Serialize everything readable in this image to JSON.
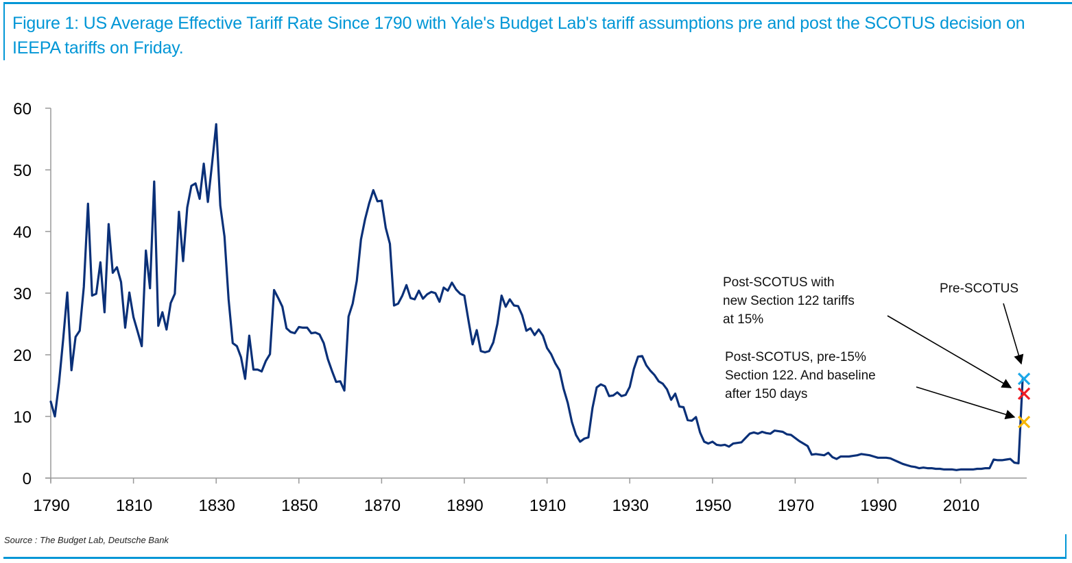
{
  "title": "Figure 1: US Average Effective Tariff Rate Since 1790 with Yale's Budget Lab's tariff assumptions pre and post the SCOTUS decision on IEEPA tariffs on Friday.",
  "source": "Source : The Budget Lab, Deutsche Bank",
  "colors": {
    "frame": "#0096d6",
    "title": "#0096d6",
    "line": "#0a3078",
    "axis": "#999999"
  },
  "chart_data": {
    "type": "line",
    "title": "US Average Effective Tariff Rate Since 1790",
    "xlabel": "",
    "ylabel": "",
    "xlim": [
      1790,
      2027
    ],
    "ylim": [
      0,
      60
    ],
    "grid": false,
    "x_ticks": [
      1790,
      1810,
      1830,
      1850,
      1870,
      1890,
      1910,
      1930,
      1950,
      1970,
      1990,
      2010
    ],
    "y_ticks": [
      0,
      10,
      20,
      30,
      40,
      50,
      60
    ],
    "series": [
      {
        "name": "Average effective tariff rate (%)",
        "color": "#0a3078",
        "x": [
          1790,
          1791,
          1792,
          1793,
          1794,
          1795,
          1796,
          1797,
          1798,
          1799,
          1800,
          1801,
          1802,
          1803,
          1804,
          1805,
          1806,
          1807,
          1808,
          1809,
          1810,
          1811,
          1812,
          1813,
          1814,
          1815,
          1816,
          1817,
          1818,
          1819,
          1820,
          1821,
          1822,
          1823,
          1824,
          1825,
          1826,
          1827,
          1828,
          1829,
          1830,
          1831,
          1832,
          1833,
          1834,
          1835,
          1836,
          1837,
          1838,
          1839,
          1840,
          1841,
          1842,
          1843,
          1844,
          1845,
          1846,
          1847,
          1848,
          1849,
          1850,
          1851,
          1852,
          1853,
          1854,
          1855,
          1856,
          1857,
          1858,
          1859,
          1860,
          1861,
          1862,
          1863,
          1864,
          1865,
          1866,
          1867,
          1868,
          1869,
          1870,
          1871,
          1872,
          1873,
          1874,
          1875,
          1876,
          1877,
          1878,
          1879,
          1880,
          1881,
          1882,
          1883,
          1884,
          1885,
          1886,
          1887,
          1888,
          1889,
          1890,
          1891,
          1892,
          1893,
          1894,
          1895,
          1896,
          1897,
          1898,
          1899,
          1900,
          1901,
          1902,
          1903,
          1904,
          1905,
          1906,
          1907,
          1908,
          1909,
          1910,
          1911,
          1912,
          1913,
          1914,
          1915,
          1916,
          1917,
          1918,
          1919,
          1920,
          1921,
          1922,
          1923,
          1924,
          1925,
          1926,
          1927,
          1928,
          1929,
          1930,
          1931,
          1932,
          1933,
          1934,
          1935,
          1936,
          1937,
          1938,
          1939,
          1940,
          1941,
          1942,
          1943,
          1944,
          1945,
          1946,
          1947,
          1948,
          1949,
          1950,
          1951,
          1952,
          1953,
          1954,
          1955,
          1956,
          1957,
          1958,
          1959,
          1960,
          1961,
          1962,
          1963,
          1964,
          1965,
          1966,
          1967,
          1968,
          1969,
          1970,
          1971,
          1972,
          1973,
          1974,
          1975,
          1976,
          1977,
          1978,
          1979,
          1980,
          1981,
          1982,
          1983,
          1984,
          1985,
          1986,
          1987,
          1988,
          1989,
          1990,
          1991,
          1992,
          1993,
          1994,
          1995,
          1996,
          1997,
          1998,
          1999,
          2000,
          2001,
          2002,
          2003,
          2004,
          2005,
          2006,
          2007,
          2008,
          2009,
          2010,
          2011,
          2012,
          2013,
          2014,
          2015,
          2016,
          2017,
          2018,
          2019,
          2020,
          2021,
          2022,
          2023,
          2024,
          2025
        ],
        "values": [
          12.4,
          10.0,
          15.5,
          22.5,
          30.1,
          17.5,
          22.9,
          23.9,
          31.0,
          44.5,
          29.6,
          29.9,
          35.0,
          26.9,
          41.2,
          33.3,
          34.2,
          31.8,
          24.4,
          30.1,
          26.1,
          23.8,
          21.4,
          36.9,
          30.8,
          48.1,
          24.7,
          26.9,
          24.1,
          28.4,
          29.9,
          43.2,
          35.2,
          43.9,
          47.4,
          47.8,
          45.3,
          51.0,
          44.8,
          51.0,
          57.4,
          44.2,
          39.2,
          29.0,
          21.9,
          21.4,
          19.6,
          16.1,
          23.1,
          17.6,
          17.6,
          17.3,
          19.0,
          20.1,
          30.5,
          29.2,
          27.8,
          24.3,
          23.7,
          23.5,
          24.5,
          24.4,
          24.4,
          23.5,
          23.6,
          23.3,
          21.9,
          19.3,
          17.4,
          15.6,
          15.7,
          14.2,
          26.2,
          28.3,
          32.0,
          38.7,
          42.0,
          44.6,
          46.7,
          44.9,
          45.0,
          40.6,
          38.0,
          28.0,
          28.3,
          29.6,
          31.3,
          29.2,
          29.0,
          30.4,
          29.1,
          29.8,
          30.2,
          30.0,
          28.6,
          30.9,
          30.4,
          31.7,
          30.6,
          29.9,
          29.6,
          25.6,
          21.7,
          24.0,
          20.6,
          20.4,
          20.6,
          22.0,
          25.0,
          29.6,
          27.8,
          29.0,
          28.0,
          27.9,
          26.4,
          23.9,
          24.3,
          23.2,
          24.1,
          23.1,
          21.1,
          20.1,
          18.6,
          17.5,
          14.5,
          12.2,
          9.1,
          7.0,
          5.9,
          6.4,
          6.6,
          11.4,
          14.7,
          15.2,
          14.9,
          13.3,
          13.4,
          13.9,
          13.3,
          13.5,
          14.8,
          17.7,
          19.7,
          19.8,
          18.3,
          17.4,
          16.7,
          15.7,
          15.3,
          14.4,
          12.7,
          13.7,
          11.6,
          11.5,
          9.4,
          9.3,
          9.9,
          7.4,
          5.9,
          5.6,
          5.9,
          5.4,
          5.3,
          5.4,
          5.1,
          5.6,
          5.7,
          5.8,
          6.5,
          7.2,
          7.4,
          7.2,
          7.5,
          7.3,
          7.2,
          7.7,
          7.6,
          7.5,
          7.1,
          7.0,
          6.5,
          6.0,
          5.6,
          5.2,
          3.8,
          3.9,
          3.8,
          3.7,
          4.1,
          3.4,
          3.1,
          3.5,
          3.5,
          3.5,
          3.6,
          3.7,
          3.9,
          3.8,
          3.7,
          3.5,
          3.3,
          3.3,
          3.3,
          3.2,
          2.9,
          2.6,
          2.3,
          2.1,
          1.9,
          1.8,
          1.6,
          1.7,
          1.6,
          1.6,
          1.5,
          1.5,
          1.4,
          1.4,
          1.4,
          1.3,
          1.4,
          1.4,
          1.4,
          1.4,
          1.5,
          1.5,
          1.6,
          1.6,
          3.0,
          2.9,
          2.9,
          3.0,
          3.1,
          2.5,
          2.4,
          16.0
        ]
      }
    ],
    "markers": [
      {
        "name": "Pre-SCOTUS",
        "x": 2025,
        "y": 16.1,
        "symbol": "x",
        "color": "#1aa7e8"
      },
      {
        "name": "Post-SCOTUS with new Section 122 tariffs at 15%",
        "x": 2025,
        "y": 13.7,
        "symbol": "x",
        "color": "#ee1c25"
      },
      {
        "name": "Post-SCOTUS, pre-15% Section 122. And baseline after 150 days",
        "x": 2025,
        "y": 9.1,
        "symbol": "x",
        "color": "#f7b500"
      }
    ],
    "annotations": [
      {
        "id": "post-15",
        "lines": [
          "Post-SCOTUS with",
          "new Section 122 tariffs",
          "at 15%"
        ],
        "points_to": "Post-SCOTUS with new Section 122 tariffs at 15%"
      },
      {
        "id": "pre",
        "lines": [
          "Pre-SCOTUS"
        ],
        "points_to": "Pre-SCOTUS"
      },
      {
        "id": "post-pre15",
        "lines": [
          "Post-SCOTUS, pre-15%",
          "Section 122. And baseline",
          "after 150 days"
        ],
        "points_to": "Post-SCOTUS, pre-15% Section 122. And baseline after 150 days"
      }
    ]
  }
}
